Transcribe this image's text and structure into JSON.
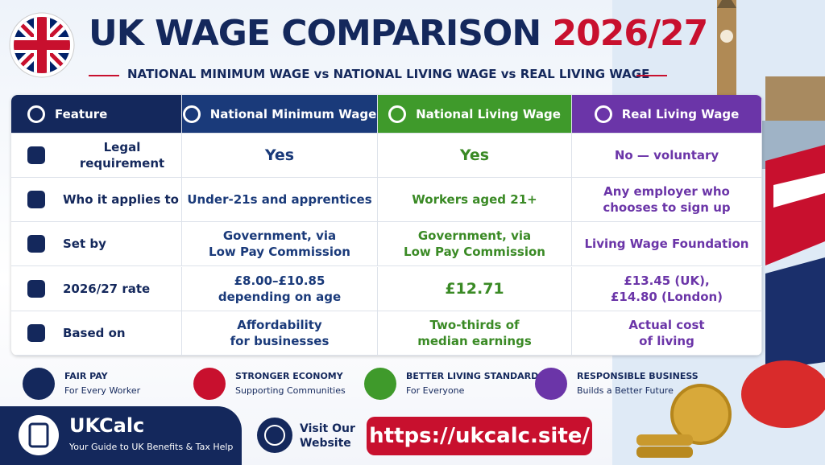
{
  "header": {
    "title_main": "UK WAGE COMPARISON",
    "title_year": "2026/27",
    "subtitle": "NATIONAL MINIMUM WAGE vs NATIONAL LIVING WAGE vs REAL LIVING WAGE"
  },
  "table": {
    "columns": [
      "Feature",
      "National Minimum Wage",
      "National Living Wage",
      "Real Living Wage"
    ],
    "rows": [
      {
        "feature": "Legal requirement",
        "cells": [
          [
            "Yes"
          ],
          [
            "Yes"
          ],
          [
            "No — voluntary"
          ]
        ]
      },
      {
        "feature": "Who it applies to",
        "cells": [
          [
            "Under-21s and apprentices"
          ],
          [
            "Workers aged 21+"
          ],
          [
            "Any employer who",
            "chooses to sign up"
          ]
        ]
      },
      {
        "feature": "Set by",
        "cells": [
          [
            "Government, via",
            "Low Pay Commission"
          ],
          [
            "Government, via",
            "Low Pay Commission"
          ],
          [
            "Living Wage Foundation"
          ]
        ]
      },
      {
        "feature": "2026/27 rate",
        "cells": [
          [
            "£8.00–£10.85",
            "depending on age"
          ],
          [
            "£12.71"
          ],
          [
            "£13.45 (UK),",
            "£14.80 (London)"
          ]
        ]
      },
      {
        "feature": "Based on",
        "cells": [
          [
            "Affordability",
            "for businesses"
          ],
          [
            "Two-thirds of",
            "median earnings"
          ],
          [
            "Actual cost",
            "of living"
          ]
        ]
      }
    ]
  },
  "badges": [
    {
      "title": "FAIR PAY",
      "text": "For Every Worker"
    },
    {
      "title": "STRONGER ECONOMY",
      "text": "Supporting Communities"
    },
    {
      "title": "BETTER LIVING STANDARDS",
      "text": "For Everyone"
    },
    {
      "title": "RESPONSIBLE BUSINESS",
      "text": "Builds a Better Future"
    }
  ],
  "footer": {
    "brand": "UKCalc",
    "tagline": "Your Guide to UK Benefits & Tax Help",
    "visit": "Visit Our Website",
    "url": "https://ukcalc.site/"
  }
}
